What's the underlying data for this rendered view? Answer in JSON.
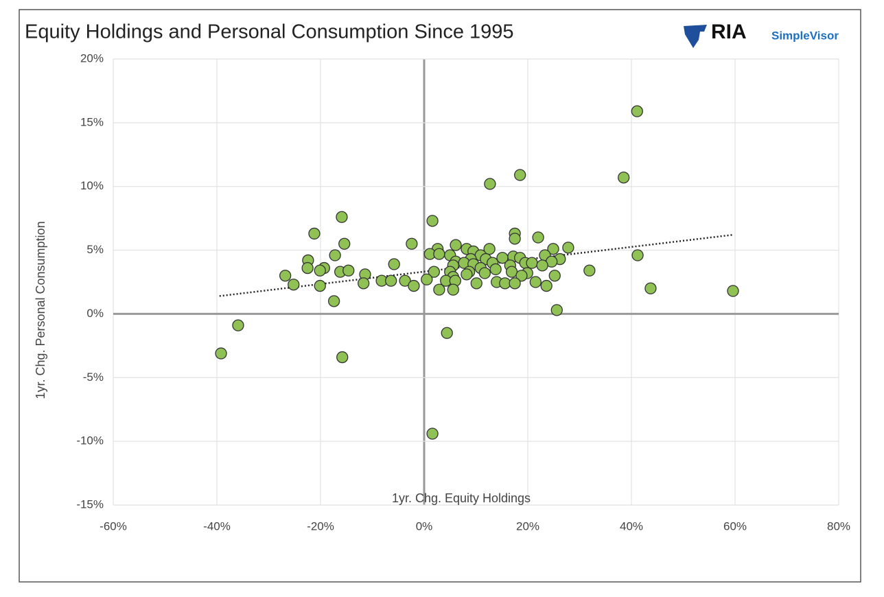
{
  "chart_data": {
    "type": "scatter",
    "title": "Equity Holdings and Personal Consumption Since 1995",
    "brand": {
      "name": "RIA",
      "product": "SimpleVisor"
    },
    "xlabel": "1yr. Chg. Equity Holdings",
    "ylabel": "1yr. Chg. Personal Consumption",
    "xlim": [
      -60,
      80
    ],
    "ylim": [
      -15,
      20
    ],
    "xticks": [
      {
        "value": -60,
        "label": "-60%"
      },
      {
        "value": -40,
        "label": "-40%"
      },
      {
        "value": -20,
        "label": "-20%"
      },
      {
        "value": 0,
        "label": "0%"
      },
      {
        "value": 20,
        "label": "20%"
      },
      {
        "value": 40,
        "label": "40%"
      },
      {
        "value": 60,
        "label": "60%"
      },
      {
        "value": 80,
        "label": "80%"
      }
    ],
    "yticks": [
      {
        "value": -15,
        "label": "-15%"
      },
      {
        "value": -10,
        "label": "-10%"
      },
      {
        "value": -5,
        "label": "-5%"
      },
      {
        "value": 0,
        "label": "0%"
      },
      {
        "value": 5,
        "label": "5%"
      },
      {
        "value": 10,
        "label": "10%"
      },
      {
        "value": 15,
        "label": "15%"
      },
      {
        "value": 20,
        "label": "20%"
      }
    ],
    "grid": true,
    "color": "#8fc155",
    "x": [
      41.1,
      38.5,
      18.5,
      12.7,
      -15.9,
      1.6,
      -21.2,
      17.5,
      17.5,
      22.0,
      -15.4,
      -2.4,
      6.1,
      2.6,
      8.2,
      12.6,
      24.9,
      27.8,
      9.5,
      1.1,
      2.9,
      5.0,
      41.2,
      -17.2,
      10.9,
      23.3,
      17.2,
      15.1,
      9.0,
      18.5,
      -22.4,
      11.9,
      26.2,
      6.1,
      7.7,
      9.5,
      13.2,
      19.5,
      20.8,
      24.6,
      -5.8,
      5.6,
      16.6,
      22.8,
      -22.5,
      -19.3,
      10.9,
      13.8,
      31.9,
      -20.1,
      -16.2,
      -14.6,
      1.9,
      5.0,
      8.7,
      11.7,
      16.9,
      19.9,
      -11.4,
      8.2,
      18.8,
      25.2,
      -26.8,
      5.6,
      -8.2,
      -6.4,
      -3.7,
      0.5,
      4.2,
      6.0,
      14.0,
      21.5,
      -11.7,
      10.1,
      15.6,
      17.5,
      -25.2,
      -20.1,
      -2.0,
      23.6,
      2.9,
      5.6,
      43.7,
      59.6,
      -17.4,
      25.6,
      -35.9,
      4.4,
      -39.2,
      -15.8,
      1.6
    ],
    "values": [
      15.9,
      10.7,
      10.9,
      10.2,
      7.6,
      7.3,
      6.3,
      6.3,
      5.9,
      6.0,
      5.5,
      5.5,
      5.4,
      5.1,
      5.1,
      5.1,
      5.1,
      5.2,
      4.9,
      4.7,
      4.7,
      4.6,
      4.6,
      4.6,
      4.6,
      4.6,
      4.5,
      4.4,
      4.3,
      4.4,
      4.2,
      4.3,
      4.3,
      4.1,
      4.0,
      3.9,
      4.0,
      4.0,
      4.0,
      4.1,
      3.9,
      3.8,
      3.8,
      3.8,
      3.6,
      3.6,
      3.6,
      3.5,
      3.4,
      3.4,
      3.3,
      3.4,
      3.3,
      3.3,
      3.3,
      3.2,
      3.3,
      3.2,
      3.1,
      3.1,
      3.0,
      3.0,
      3.0,
      2.9,
      2.6,
      2.6,
      2.6,
      2.7,
      2.6,
      2.6,
      2.5,
      2.5,
      2.4,
      2.4,
      2.4,
      2.4,
      2.3,
      2.2,
      2.2,
      2.2,
      1.9,
      1.9,
      2.0,
      1.8,
      1.0,
      0.3,
      -0.9,
      -1.5,
      -3.1,
      -3.4,
      -9.4
    ],
    "trendline": {
      "x": [
        -39.5,
        59.5
      ],
      "y": [
        1.4,
        6.2
      ]
    }
  }
}
